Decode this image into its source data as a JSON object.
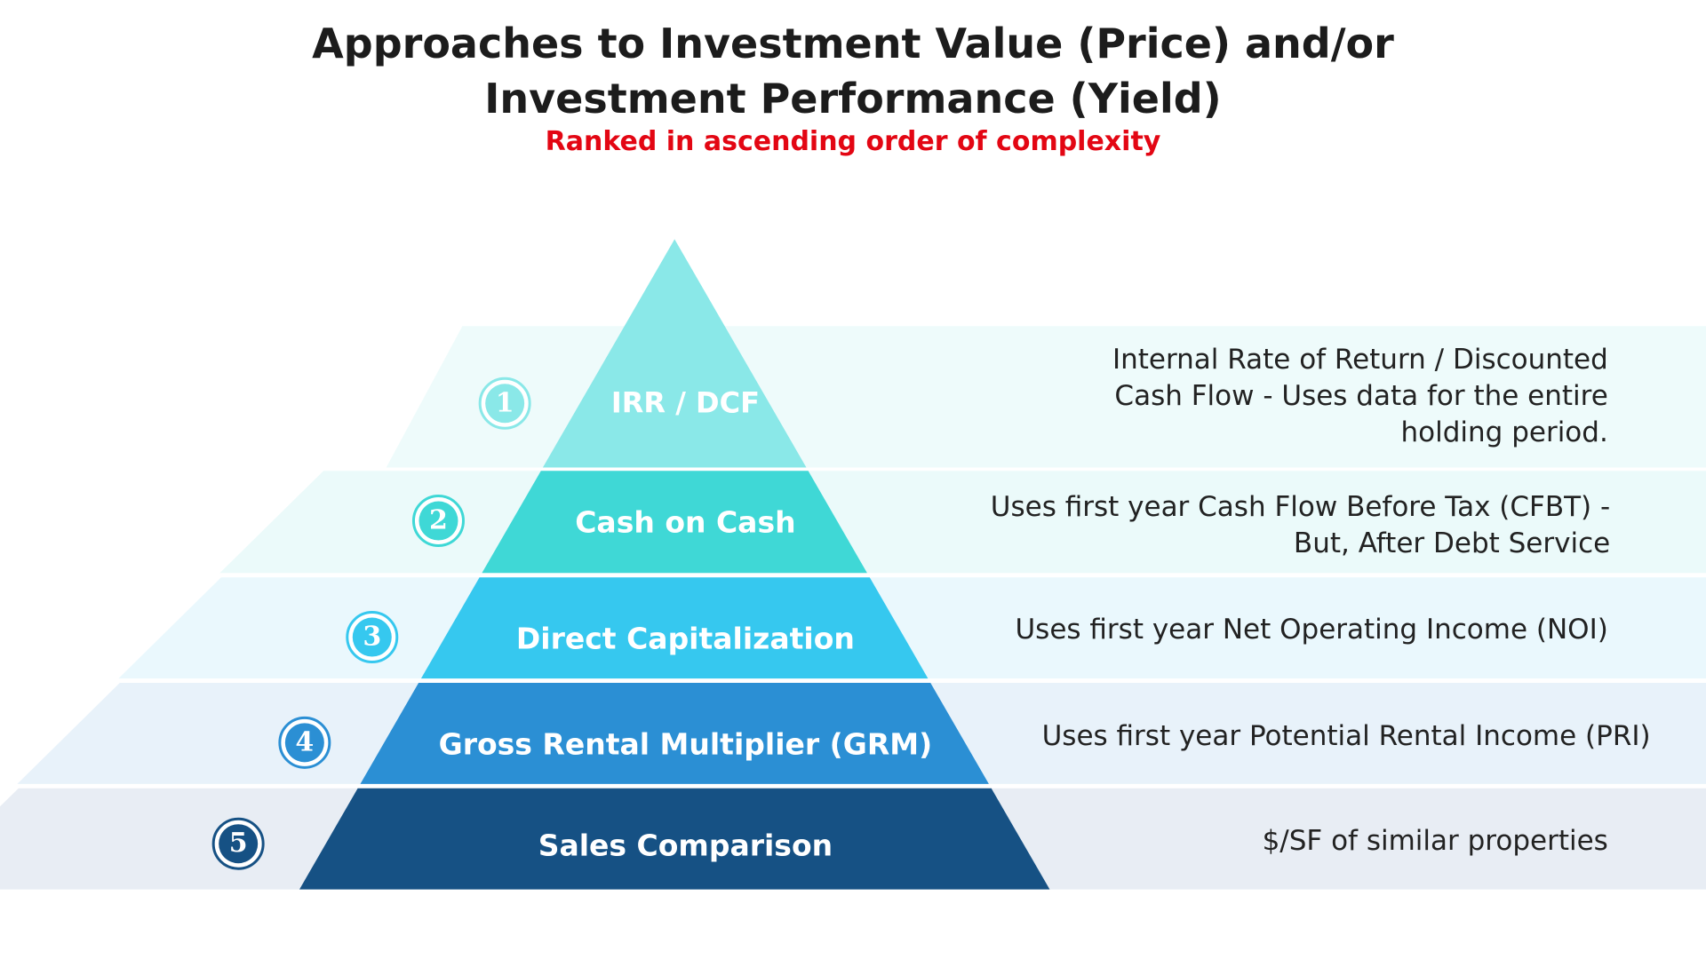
{
  "title": "Approaches to Investment Value (Price) and/or\nInvestment Performance (Yield)",
  "subtitle": "Ranked in ascending order of complexity",
  "tiers": [
    {
      "number": "1",
      "label": "IRR / DCF",
      "description": "Internal Rate of Return / Discounted\nCash Flow - Uses data for the entire\nholding period.",
      "color": "#8ae8e8",
      "band_color": "#eefbfb",
      "badge_color": "#8ae8e8",
      "label_color": "#ffffff"
    },
    {
      "number": "2",
      "label": "Cash on Cash",
      "description": "Uses first year Cash Flow Before Tax (CFBT) -\nBut, After Debt Service",
      "color": "#3fd8d6",
      "band_color": "#ebfafa",
      "badge_color": "#3fd8d6",
      "label_color": "#ffffff"
    },
    {
      "number": "3",
      "label": "Direct Capitalization",
      "description": "Uses first year Net Operating Income (NOI)",
      "color": "#36c8ef",
      "band_color": "#eaf8fd",
      "badge_color": "#36c8ef",
      "label_color": "#ffffff"
    },
    {
      "number": "4",
      "label": "Gross Rental Multiplier (GRM)",
      "description": "Uses first year Potential Rental Income (PRI)",
      "color": "#2b8fd4",
      "band_color": "#e8f2fa",
      "badge_color": "#2b8fd4",
      "label_color": "#ffffff"
    },
    {
      "number": "5",
      "label": "Sales Comparison",
      "description": "$/SF of similar properties",
      "color": "#165184",
      "band_color": "#e8edf4",
      "badge_color": "#165184",
      "label_color": "#ffffff"
    }
  ]
}
